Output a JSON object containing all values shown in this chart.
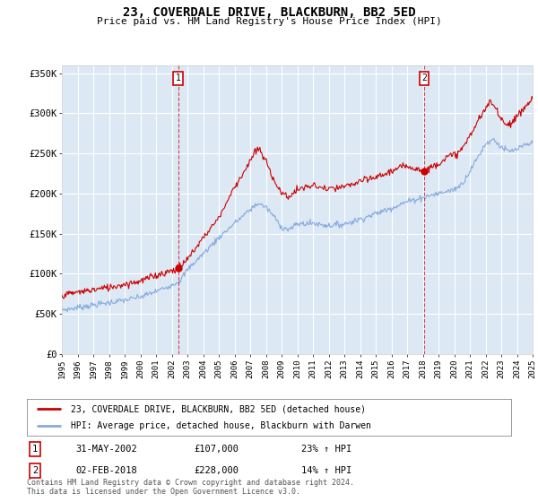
{
  "title": "23, COVERDALE DRIVE, BLACKBURN, BB2 5ED",
  "subtitle": "Price paid vs. HM Land Registry's House Price Index (HPI)",
  "legend_line1": "23, COVERDALE DRIVE, BLACKBURN, BB2 5ED (detached house)",
  "legend_line2": "HPI: Average price, detached house, Blackburn with Darwen",
  "annotation1_label": "1",
  "annotation1_date": "31-MAY-2002",
  "annotation1_price": "£107,000",
  "annotation1_hpi": "23% ↑ HPI",
  "annotation2_label": "2",
  "annotation2_date": "02-FEB-2018",
  "annotation2_price": "£228,000",
  "annotation2_hpi": "14% ↑ HPI",
  "footer": "Contains HM Land Registry data © Crown copyright and database right 2024.\nThis data is licensed under the Open Government Licence v3.0.",
  "ylim": [
    0,
    360000
  ],
  "yticks": [
    0,
    50000,
    100000,
    150000,
    200000,
    250000,
    300000,
    350000
  ],
  "ytick_labels": [
    "£0",
    "£50K",
    "£100K",
    "£150K",
    "£200K",
    "£250K",
    "£300K",
    "£350K"
  ],
  "background_color": "#dce9f5",
  "grid_color": "#ffffff",
  "line_color_red": "#cc0000",
  "line_color_blue": "#88aadd",
  "annotation_vline_color": "#cc0000",
  "sale1_x": 2002.42,
  "sale1_y": 107000,
  "sale2_x": 2018.09,
  "sale2_y": 228000,
  "xlim_start": 1995,
  "xlim_end": 2025
}
